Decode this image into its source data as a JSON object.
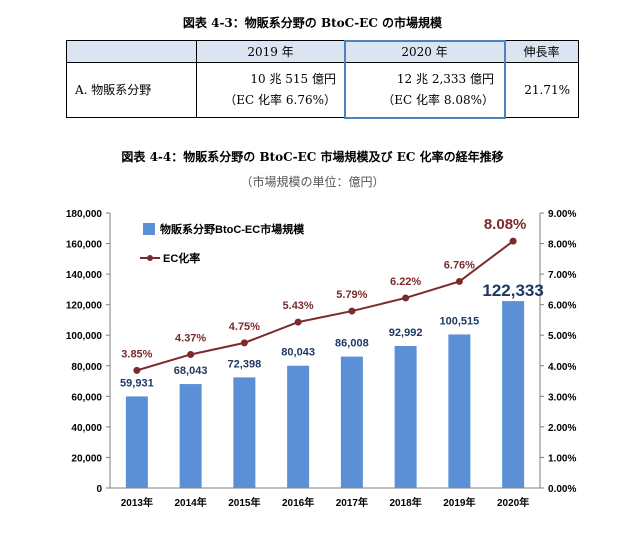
{
  "table_title": "図表 4-3：物販系分野の BtoC-EC の市場規模",
  "table": {
    "headers": [
      "",
      "2019 年",
      "2020 年",
      "伸長率"
    ],
    "row_label": "A. 物販系分野",
    "cells": [
      {
        "value": "10 兆 515 億円",
        "ec": "（EC 化率 6.76%）"
      },
      {
        "value": "12 兆 2,333 億円",
        "ec": "（EC 化率 8.08%）"
      }
    ],
    "growth": "21.71%"
  },
  "chart_title": "図表 4-4：物販系分野の BtoC-EC 市場規模及び EC 化率の経年推移",
  "chart_subtitle": "（市場規模の単位：億円）",
  "colors": {
    "bar": "#5b8fd6",
    "line": "#7b2b2b",
    "bar_label": "#1f3864",
    "highlight": "#4f81bd"
  },
  "chart_data": {
    "type": "bar",
    "categories": [
      "2013年",
      "2014年",
      "2015年",
      "2016年",
      "2017年",
      "2018年",
      "2019年",
      "2020年"
    ],
    "series": [
      {
        "name": "物販系分野BtoC-EC市場規模",
        "type": "bar",
        "axis": "left",
        "values": [
          59931,
          68043,
          72398,
          80043,
          86008,
          92992,
          100515,
          122333
        ],
        "labels": [
          "59,931",
          "68,043",
          "72,398",
          "80,043",
          "86,008",
          "92,992",
          "100,515",
          "122,333"
        ]
      },
      {
        "name": "EC化率",
        "type": "line",
        "axis": "right",
        "values": [
          3.85,
          4.37,
          4.75,
          5.43,
          5.79,
          6.22,
          6.76,
          8.08
        ],
        "labels": [
          "3.85%",
          "4.37%",
          "4.75%",
          "5.43%",
          "5.79%",
          "6.22%",
          "6.76%",
          "8.08%"
        ]
      }
    ],
    "y_left": {
      "range": [
        0,
        180000
      ],
      "ticks": [
        "0",
        "20,000",
        "40,000",
        "60,000",
        "80,000",
        "100,000",
        "120,000",
        "140,000",
        "160,000",
        "180,000"
      ]
    },
    "y_right": {
      "range": [
        0,
        9
      ],
      "ticks": [
        "0.00%",
        "1.00%",
        "2.00%",
        "3.00%",
        "4.00%",
        "5.00%",
        "6.00%",
        "7.00%",
        "8.00%",
        "9.00%"
      ]
    },
    "legend_position": "top-left",
    "grid": false
  }
}
